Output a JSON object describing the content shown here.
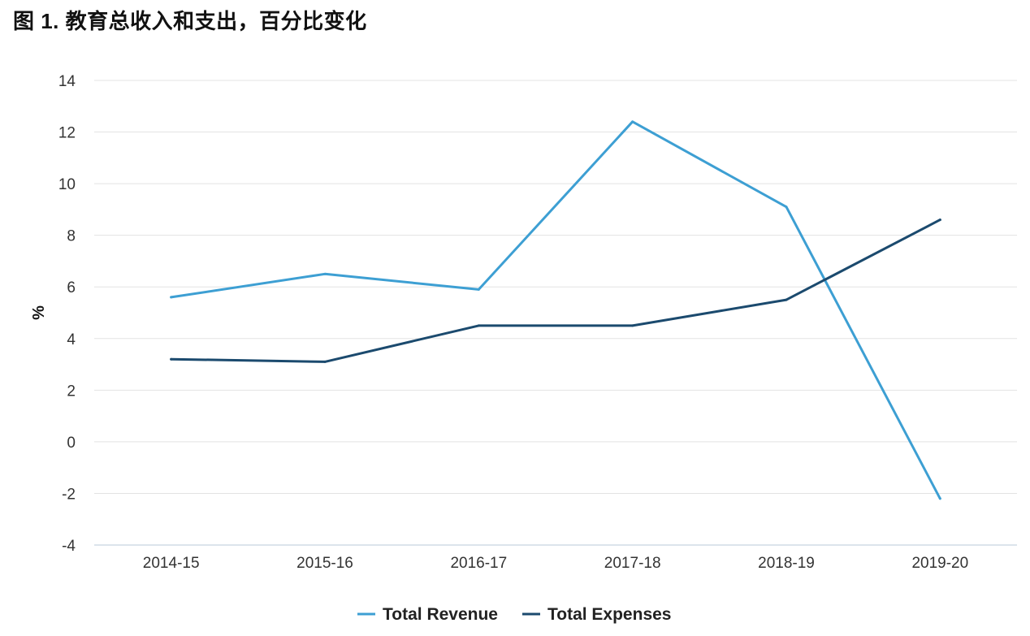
{
  "title": "图 1. 教育总收入和支出，百分比变化",
  "chart_data": {
    "type": "line",
    "title": "图 1. 教育总收入和支出，百分比变化",
    "xlabel": "",
    "ylabel": "%",
    "categories": [
      "2014-15",
      "2015-16",
      "2016-17",
      "2017-18",
      "2018-19",
      "2019-20"
    ],
    "ylim": [
      -4,
      14
    ],
    "yticks": [
      14,
      12,
      10,
      8,
      6,
      4,
      2,
      0,
      -2,
      -4
    ],
    "grid": true,
    "legend_position": "bottom-center",
    "series": [
      {
        "name": "Total Revenue",
        "color": "#3d9fd3",
        "values": [
          5.6,
          6.5,
          5.9,
          12.4,
          9.1,
          -2.2
        ]
      },
      {
        "name": "Total Expenses",
        "color": "#1b4a6e",
        "values": [
          3.2,
          3.1,
          4.5,
          4.5,
          5.5,
          8.6
        ]
      }
    ]
  }
}
